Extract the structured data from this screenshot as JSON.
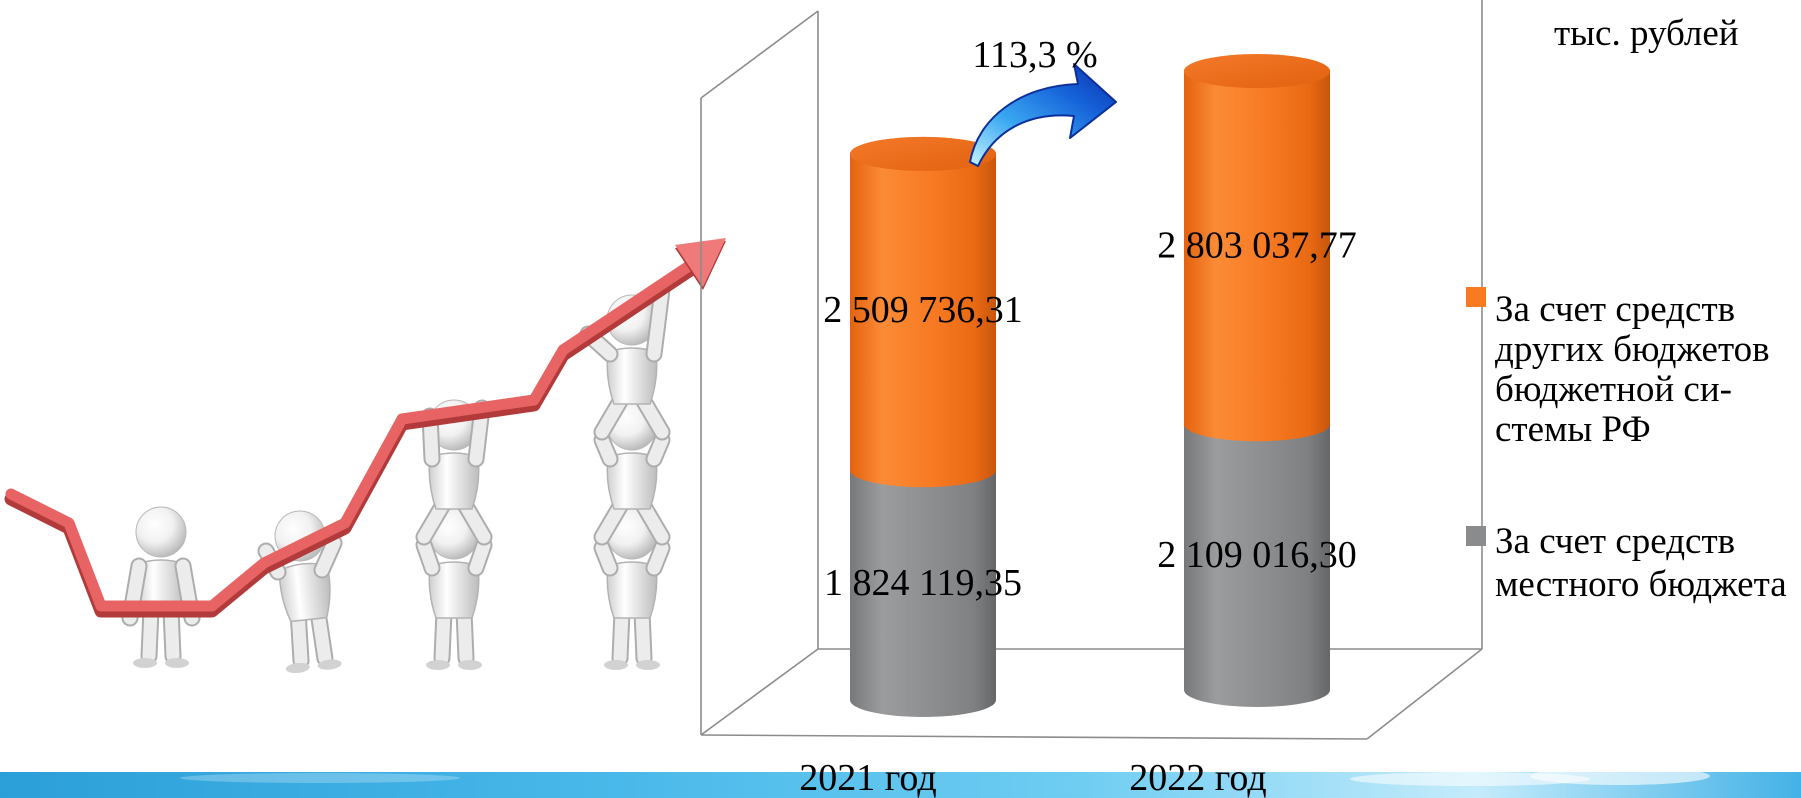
{
  "colors": {
    "local_budget": "#8a8b8d",
    "other_budgets": "#f97a20",
    "growth_arrow": "#1561d8",
    "illustration_arrow": "#e25555",
    "frame": "#8c8c8c"
  },
  "chart_data": {
    "type": "bar",
    "three_d": true,
    "stacked": true,
    "categories": [
      "2021 год",
      "2022 год"
    ],
    "series": [
      {
        "legend_lines": [
          "За счет средств",
          "местного бюджета"
        ],
        "values": [
          1824119.35,
          2109016.3
        ],
        "value_labels": [
          "1 824 119,35",
          "2 109 016,30"
        ],
        "color": "#8a8b8d"
      },
      {
        "legend_lines": [
          "За счет средств",
          "других бюджетов",
          "бюджетной си-",
          "стемы РФ"
        ],
        "values": [
          2509736.31,
          2803037.77
        ],
        "value_labels": [
          "2 509 736,31",
          "2 803 037,77"
        ],
        "color": "#f97a20"
      }
    ],
    "unit": "тыс. рублей",
    "annotations": [
      {
        "text": "113,3 %"
      }
    ],
    "legend_position": "right",
    "grid": false
  }
}
